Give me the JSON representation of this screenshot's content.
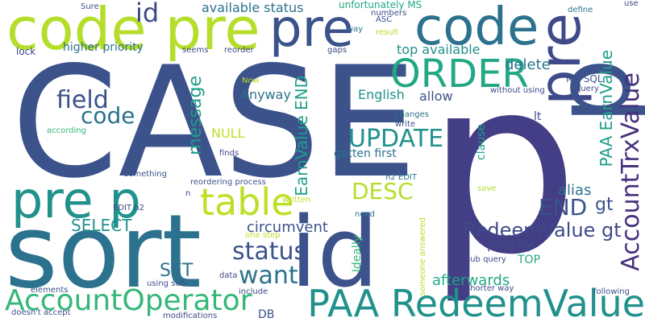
{
  "words": [
    {
      "id": "w_CASE",
      "text": "CASE",
      "color": "#3b528b"
    },
    {
      "id": "w_p_big",
      "text": "p",
      "color": "#433e85"
    },
    {
      "id": "w_sort",
      "text": "sort",
      "color": "#2c728e"
    },
    {
      "id": "w_id_big",
      "text": "id",
      "color": "#3b528b"
    },
    {
      "id": "w_PAA_Redeem_bottom",
      "text": "PAA RedeemValue",
      "color": "#21918c"
    },
    {
      "id": "w_code_pre_top",
      "text": "code pre",
      "color": "#b5de2b"
    },
    {
      "id": "w_pre_top",
      "text": "pre",
      "color": "#3b528b"
    },
    {
      "id": "w_code_top_right",
      "text": "code",
      "color": "#2c728e"
    },
    {
      "id": "w_pre_vert_right",
      "text": "pre",
      "color": "#3e4a89"
    },
    {
      "id": "w_p_vert_right",
      "text": "p",
      "color": "#3b528b"
    },
    {
      "id": "w_pre_p",
      "text": "pre p",
      "color": "#21918c"
    },
    {
      "id": "w_table",
      "text": "table",
      "color": "#bddf26"
    },
    {
      "id": "w_ORDER",
      "text": "ORDER",
      "color": "#22a884"
    },
    {
      "id": "w_AccountOperator",
      "text": "AccountOperator",
      "color": "#35b779"
    },
    {
      "id": "w_AccountTrxValue",
      "text": "AccountTrxValue",
      "color": "#46327e"
    },
    {
      "id": "w_status",
      "text": "status",
      "color": "#3b528b"
    },
    {
      "id": "w_want",
      "text": "want",
      "color": "#2c728e"
    },
    {
      "id": "w_UPDATE",
      "text": "UPDATE",
      "color": "#21918c"
    },
    {
      "id": "w_field",
      "text": "field",
      "color": "#3b528b"
    },
    {
      "id": "w_code_mid",
      "text": "code",
      "color": "#2c728e"
    },
    {
      "id": "w_DESC",
      "text": "DESC",
      "color": "#b5de2b"
    },
    {
      "id": "w_END_right",
      "text": "END",
      "color": "#3b528b"
    },
    {
      "id": "w_RedeemValue_gt",
      "text": "RedeemValue gt",
      "color": "#3e4a89"
    },
    {
      "id": "w_id_small",
      "text": "id",
      "color": "#3e4a89"
    },
    {
      "id": "w_message",
      "text": "message",
      "color": "#1f9e89"
    },
    {
      "id": "w_PAA_EarnValue",
      "text": "PAA EarnValue",
      "color": "#1f9e89"
    },
    {
      "id": "w_EarnValue_END",
      "text": "EarnValue END",
      "color": "#1f9e89"
    },
    {
      "id": "w_SELECT",
      "text": "SELECT",
      "color": "#21918c"
    },
    {
      "id": "w_SET",
      "text": "SET",
      "color": "#2c728e"
    },
    {
      "id": "w_NULL",
      "text": "NULL",
      "color": "#bddf26"
    },
    {
      "id": "w_circumvent",
      "text": "circumvent",
      "color": "#3b528b"
    },
    {
      "id": "w_afterwards",
      "text": "afterwards",
      "color": "#22a884"
    },
    {
      "id": "w_alias",
      "text": "alias",
      "color": "#2c728e"
    },
    {
      "id": "w_gt_right",
      "text": "gt",
      "color": "#3b528b"
    },
    {
      "id": "w_delete",
      "text": "delete",
      "color": "#2c728e"
    },
    {
      "id": "w_top_available",
      "text": "top available",
      "color": "#21918c"
    },
    {
      "id": "w_available_status",
      "text": "available status",
      "color": "#2c728e"
    },
    {
      "id": "w_higher_priority",
      "text": "higher priority",
      "color": "#2c728e"
    },
    {
      "id": "w_Anyway",
      "text": "Anyway",
      "color": "#2c728e"
    },
    {
      "id": "w_English",
      "text": "English",
      "color": "#21918c"
    },
    {
      "id": "w_allow",
      "text": "allow",
      "color": "#3b528b"
    },
    {
      "id": "w_priority",
      "text": "priority",
      "color": "#3e4a89"
    },
    {
      "id": "w_gotten_first",
      "text": "gotten first",
      "color": "#2c728e"
    },
    {
      "id": "w_clause",
      "text": "clause",
      "color": "#1f9e89"
    },
    {
      "id": "w_Ideally",
      "text": "Ideally",
      "color": "#35b779"
    },
    {
      "id": "w_TOP",
      "text": "TOP",
      "color": "#22a884"
    },
    {
      "id": "w_DB",
      "text": "DB",
      "color": "#3b528b"
    },
    {
      "id": "w_lt",
      "text": "lt",
      "color": "#3e4a89"
    },
    {
      "id": "w_lock",
      "text": "lock",
      "color": "#3e4a89"
    },
    {
      "id": "w_unfortunately_MS",
      "text": "unfortunately MS",
      "color": "#22a884"
    },
    {
      "id": "w_Sure",
      "text": "Sure",
      "color": "#3b528b"
    },
    {
      "id": "w_numbers",
      "text": "numbers",
      "color": "#3e4a89"
    },
    {
      "id": "w_ASC",
      "text": "ASC",
      "color": "#3e4a89"
    },
    {
      "id": "w_define",
      "text": "define",
      "color": "#2c728e"
    },
    {
      "id": "w_use",
      "text": "use",
      "color": "#3e4a89"
    },
    {
      "id": "w_way",
      "text": "way",
      "color": "#2c728e"
    },
    {
      "id": "w_result",
      "text": "result",
      "color": "#b5de2b"
    },
    {
      "id": "w_seems",
      "text": "seems",
      "color": "#3e4a89"
    },
    {
      "id": "w_reorder",
      "text": "reorder",
      "color": "#3e4a89"
    },
    {
      "id": "w_gaps",
      "text": "gaps",
      "color": "#3e4a89"
    },
    {
      "id": "w_Now",
      "text": "Now",
      "color": "#bddf26"
    },
    {
      "id": "w_MS_SQL",
      "text": "MS SQL",
      "color": "#3b528b"
    },
    {
      "id": "w_query",
      "text": "query",
      "color": "#3e4a89"
    },
    {
      "id": "w_without_using",
      "text": "without using",
      "color": "#3e4a89"
    },
    {
      "id": "w_changes",
      "text": "changes",
      "color": "#2c728e"
    },
    {
      "id": "w_write",
      "text": "write",
      "color": "#3b528b"
    },
    {
      "id": "w_according",
      "text": "according",
      "color": "#35b779"
    },
    {
      "id": "w_finds",
      "text": "finds",
      "color": "#3e4a89"
    },
    {
      "id": "w_h2_EDIT",
      "text": "h2 EDIT",
      "color": "#2c728e"
    },
    {
      "id": "w_something",
      "text": "something",
      "color": "#3b528b"
    },
    {
      "id": "w_reordering_process",
      "text": "reordering process",
      "color": "#3b528b"
    },
    {
      "id": "w_n",
      "text": "n",
      "color": "#3e4a89"
    },
    {
      "id": "w_save",
      "text": "save",
      "color": "#b5de2b"
    },
    {
      "id": "w_written",
      "text": "written",
      "color": "#bddf26"
    },
    {
      "id": "w_EDIT_h2",
      "text": "EDIT h2",
      "color": "#3e4a89"
    },
    {
      "id": "w_need",
      "text": "need",
      "color": "#2c728e"
    },
    {
      "id": "w_one_step",
      "text": "one step",
      "color": "#bddf26"
    },
    {
      "id": "w_someone_answered",
      "text": "someone answered",
      "color": "#bddf26"
    },
    {
      "id": "w_sub_query",
      "text": "sub query",
      "color": "#3e4a89"
    },
    {
      "id": "w_data",
      "text": "data",
      "color": "#3e4a89"
    },
    {
      "id": "w_using_sub",
      "text": "using sub",
      "color": "#3e4a89"
    },
    {
      "id": "w_shorter_way",
      "text": "shorter way",
      "color": "#3e4a89"
    },
    {
      "id": "w_elements",
      "text": "elements",
      "color": "#3b528b"
    },
    {
      "id": "w_include",
      "text": "include",
      "color": "#3e4a89"
    },
    {
      "id": "w_following",
      "text": "following",
      "color": "#3b528b"
    },
    {
      "id": "w_doesnt_accept",
      "text": "doesn't accept",
      "color": "#3b528b"
    },
    {
      "id": "w_modifications",
      "text": "modifications",
      "color": "#3e4a89"
    }
  ]
}
